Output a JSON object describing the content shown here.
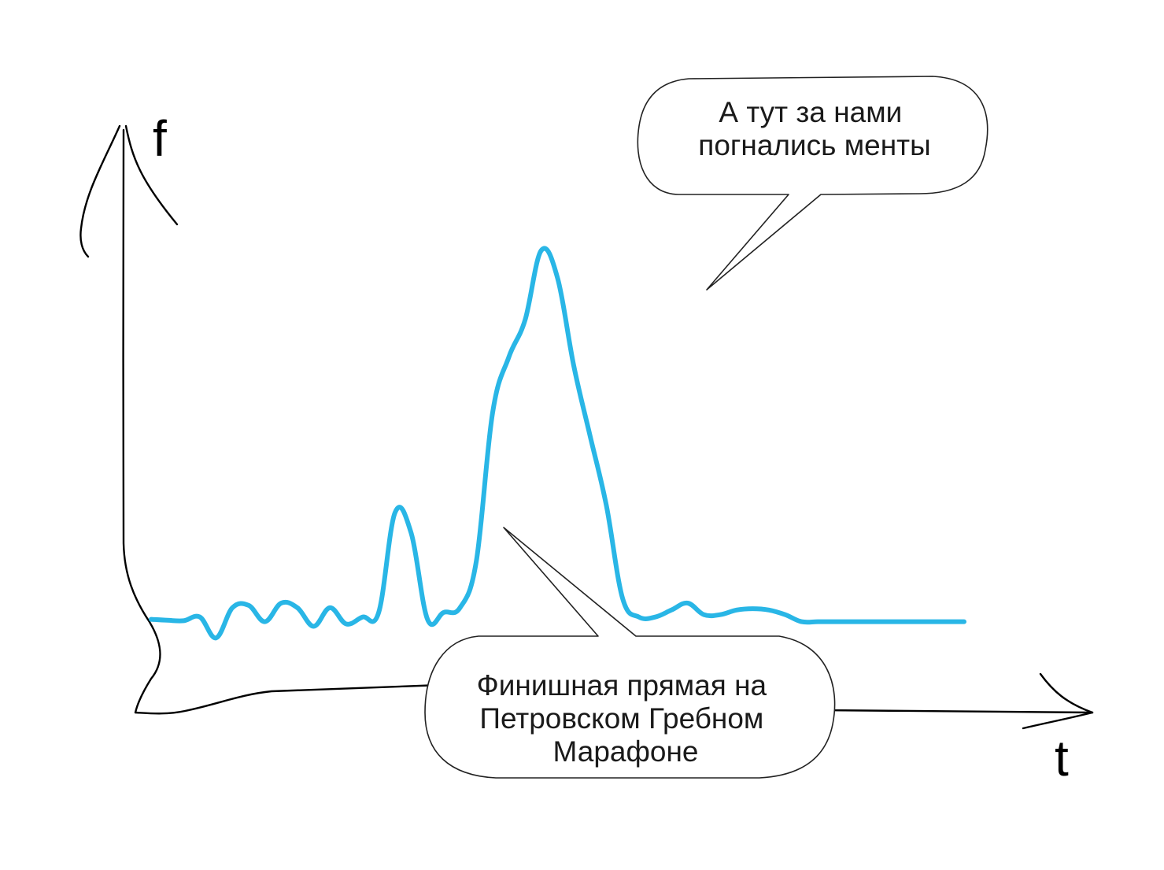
{
  "chart_data": {
    "type": "line",
    "xlabel": "t",
    "ylabel": "f",
    "grid": false,
    "legend": "none",
    "x": [
      0,
      2,
      4,
      6,
      8,
      10,
      12,
      14,
      16,
      18,
      20,
      22,
      24,
      26,
      28,
      30,
      32,
      34,
      36,
      38,
      40,
      42,
      44,
      46,
      48,
      50,
      52,
      54,
      56,
      58,
      60,
      62,
      64,
      66,
      68,
      70,
      72,
      74,
      76,
      78,
      80,
      82,
      84,
      86,
      88,
      90,
      92,
      94,
      96,
      98,
      100
    ],
    "series": [
      {
        "color": "#29b6e6",
        "values": [
          15.5,
          15.3,
          15.2,
          16.0,
          11.5,
          18.0,
          18.5,
          15.0,
          19.0,
          18.0,
          14.0,
          18.0,
          14.5,
          16.0,
          17.0,
          38.5,
          34.0,
          15.5,
          17.0,
          18.0,
          28.0,
          60.0,
          72.0,
          80.0,
          95.0,
          89.0,
          70.0,
          55.0,
          40.0,
          20.0,
          16.0,
          16.0,
          17.5,
          19.0,
          16.5,
          16.5,
          17.5,
          17.8,
          17.5,
          16.5,
          15.0,
          15.0,
          15.0,
          15.0,
          15.0,
          15.0,
          15.0,
          15.0,
          15.0,
          15.0,
          15.0
        ]
      }
    ],
    "annotations": [
      {
        "id": "police",
        "text_lines": [
          "А тут за нами",
          "погнались менты"
        ]
      },
      {
        "id": "finish",
        "text_lines": [
          "Финишная прямая на",
          "Петровском Гребном",
          "Марафоне"
        ]
      }
    ]
  }
}
